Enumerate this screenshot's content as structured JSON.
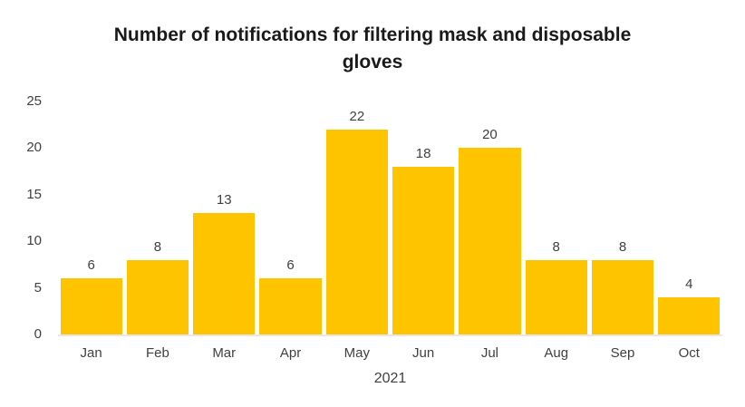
{
  "chart_data": {
    "type": "bar",
    "title": "Number of notifications for filtering mask and disposable gloves",
    "categories": [
      "Jan",
      "Feb",
      "Mar",
      "Apr",
      "May",
      "Jun",
      "Jul",
      "Aug",
      "Sep",
      "Oct"
    ],
    "values": [
      6,
      8,
      13,
      6,
      22,
      18,
      20,
      8,
      8,
      4
    ],
    "xlabel": "2021",
    "ylabel": "",
    "ylim": [
      0,
      25
    ],
    "yticks": [
      0,
      5,
      10,
      15,
      20,
      25
    ],
    "grid": false,
    "legend": false,
    "data_labels": true,
    "bar_color": "#FFC400",
    "label_color": "#404040",
    "title_color": "#1a1a1a",
    "axis_line_color": "#e8e6ef"
  }
}
